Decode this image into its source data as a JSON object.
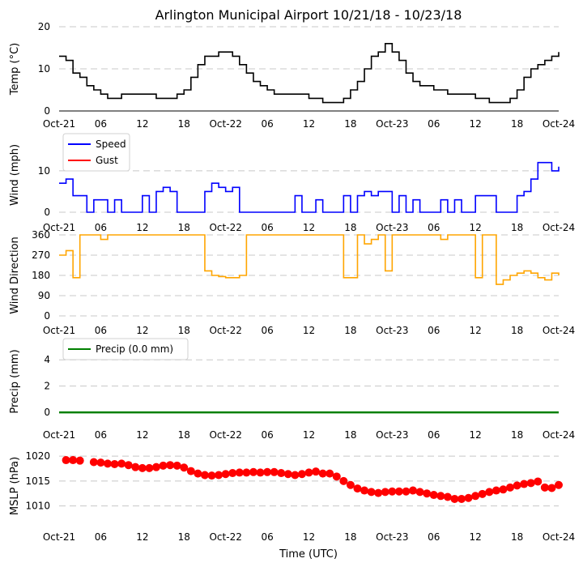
{
  "chart_data": [
    {
      "type": "line",
      "title": "Arlington Municipal Airport 10/21/18 - 10/23/18",
      "ylabel": "Temp ($^\\circ$C)",
      "ylabel_text": "Temp (°C)",
      "ylim": [
        0,
        20
      ],
      "yticks": [
        "0",
        "10",
        "20"
      ],
      "color": "#000000",
      "series": [
        {
          "name": "Temp",
          "x": [
            0,
            1,
            2,
            3,
            4,
            5,
            6,
            7,
            8,
            9,
            10,
            11,
            12,
            13,
            14,
            15,
            16,
            17,
            18,
            19,
            20,
            21,
            22,
            23,
            24,
            25,
            26,
            27,
            28,
            29,
            30,
            31,
            32,
            33,
            34,
            35,
            36,
            37,
            38,
            39,
            40,
            41,
            42,
            43,
            44,
            45,
            46,
            47,
            48,
            49,
            50,
            51,
            52,
            53,
            54,
            55,
            56,
            57,
            58,
            59,
            60,
            61,
            62,
            63,
            64,
            65,
            66,
            67,
            68,
            69,
            70,
            71,
            72
          ],
          "values": [
            13,
            12,
            9,
            8,
            6,
            5,
            4,
            3,
            3,
            4,
            4,
            4,
            4,
            4,
            3,
            3,
            3,
            4,
            5,
            8,
            11,
            13,
            13,
            14,
            14,
            13,
            11,
            9,
            7,
            6,
            5,
            4,
            4,
            4,
            4,
            4,
            3,
            3,
            2,
            2,
            2,
            3,
            5,
            7,
            10,
            13,
            14,
            16,
            14,
            12,
            9,
            7,
            6,
            6,
            5,
            5,
            4,
            4,
            4,
            4,
            3,
            3,
            2,
            2,
            2,
            3,
            5,
            8,
            10,
            11,
            12,
            13,
            14
          ]
        }
      ]
    },
    {
      "type": "line",
      "ylabel": "Wind (mph)",
      "ylim": [
        0,
        18
      ],
      "yticks": [
        "0",
        "10"
      ],
      "legend": {
        "position": "upper-left",
        "entries": [
          "Speed",
          "Gust"
        ]
      },
      "series": [
        {
          "name": "Speed",
          "color": "#0000ff",
          "x": [
            0,
            1,
            2,
            3,
            4,
            5,
            6,
            7,
            8,
            9,
            10,
            11,
            12,
            13,
            14,
            15,
            16,
            17,
            18,
            19,
            20,
            21,
            22,
            23,
            24,
            25,
            26,
            27,
            28,
            29,
            30,
            31,
            32,
            33,
            34,
            35,
            36,
            37,
            38,
            39,
            40,
            41,
            42,
            43,
            44,
            45,
            46,
            47,
            48,
            49,
            50,
            51,
            52,
            53,
            54,
            55,
            56,
            57,
            58,
            59,
            60,
            61,
            62,
            63,
            64,
            65,
            66,
            67,
            68,
            69,
            70,
            71,
            72
          ],
          "values": [
            7,
            8,
            4,
            4,
            0,
            3,
            3,
            0,
            3,
            0,
            0,
            0,
            4,
            0,
            5,
            6,
            5,
            0,
            0,
            0,
            0,
            5,
            7,
            6,
            5,
            6,
            0,
            0,
            0,
            0,
            0,
            0,
            0,
            0,
            4,
            0,
            0,
            3,
            0,
            0,
            0,
            4,
            0,
            4,
            5,
            4,
            5,
            5,
            0,
            4,
            0,
            3,
            0,
            0,
            0,
            3,
            0,
            3,
            0,
            0,
            4,
            4,
            4,
            0,
            0,
            0,
            4,
            5,
            8,
            12,
            12,
            10,
            11
          ]
        },
        {
          "name": "Gust",
          "color": "#ff0000",
          "x": [],
          "values": []
        }
      ]
    },
    {
      "type": "line",
      "ylabel": "Wind Direction",
      "ylim": [
        0,
        360
      ],
      "yticks": [
        "0",
        "90",
        "180",
        "270",
        "360"
      ],
      "color": "#ffa500",
      "series": [
        {
          "name": "Direction",
          "x": [
            0,
            1,
            2,
            3,
            4,
            5,
            6,
            7,
            8,
            9,
            10,
            11,
            12,
            13,
            14,
            15,
            16,
            17,
            18,
            19,
            20,
            21,
            22,
            23,
            24,
            25,
            26,
            27,
            28,
            29,
            30,
            31,
            32,
            33,
            34,
            35,
            36,
            37,
            38,
            39,
            40,
            41,
            42,
            43,
            44,
            45,
            46,
            47,
            48,
            49,
            50,
            51,
            52,
            53,
            54,
            55,
            56,
            57,
            58,
            59,
            60,
            61,
            62,
            63,
            64,
            65,
            66,
            67,
            68,
            69,
            70,
            71,
            72
          ],
          "values": [
            270,
            290,
            170,
            360,
            360,
            360,
            340,
            360,
            360,
            360,
            360,
            360,
            360,
            360,
            360,
            360,
            360,
            360,
            360,
            360,
            360,
            200,
            180,
            175,
            170,
            170,
            180,
            360,
            360,
            360,
            360,
            360,
            360,
            360,
            360,
            360,
            360,
            360,
            360,
            360,
            360,
            170,
            170,
            360,
            320,
            340,
            360,
            200,
            360,
            360,
            360,
            360,
            360,
            360,
            360,
            340,
            360,
            360,
            360,
            360,
            170,
            360,
            360,
            140,
            160,
            180,
            190,
            200,
            190,
            170,
            160,
            190,
            180
          ]
        }
      ]
    },
    {
      "type": "line",
      "ylabel": "Precip (mm)",
      "ylim": [
        -0.3,
        5
      ],
      "yticks": [
        "0",
        "2",
        "4"
      ],
      "color": "#008000",
      "legend": {
        "position": "upper-left",
        "entries": [
          "Precip (0.0 mm)"
        ]
      },
      "series": [
        {
          "name": "Precip (0.0 mm)",
          "x": [
            0,
            72
          ],
          "values": [
            0,
            0
          ]
        }
      ]
    },
    {
      "type": "scatter",
      "ylabel": "MSLP (hPa)",
      "ylim": [
        1007,
        1021
      ],
      "yticks": [
        "1010",
        "1015",
        "1020"
      ],
      "color": "#ff0000",
      "series": [
        {
          "name": "MSLP",
          "x": [
            1,
            2,
            3,
            5,
            6,
            7,
            8,
            9,
            10,
            11,
            12,
            13,
            14,
            15,
            16,
            17,
            18,
            19,
            20,
            21,
            22,
            23,
            24,
            25,
            26,
            27,
            28,
            29,
            30,
            31,
            32,
            33,
            34,
            35,
            36,
            37,
            38,
            39,
            40,
            41,
            42,
            43,
            44,
            45,
            46,
            47,
            48,
            49,
            50,
            51,
            52,
            53,
            54,
            55,
            56,
            57,
            58,
            59,
            60,
            61,
            62,
            63,
            64,
            65,
            66,
            67,
            68,
            69,
            70,
            71,
            72
          ],
          "values": [
            1019.2,
            1019.2,
            1019.1,
            1018.8,
            1018.7,
            1018.5,
            1018.4,
            1018.5,
            1018.2,
            1017.8,
            1017.6,
            1017.6,
            1017.8,
            1018.1,
            1018.2,
            1018.1,
            1017.7,
            1017.0,
            1016.5,
            1016.2,
            1016.1,
            1016.2,
            1016.4,
            1016.6,
            1016.7,
            1016.7,
            1016.8,
            1016.7,
            1016.8,
            1016.8,
            1016.6,
            1016.4,
            1016.2,
            1016.4,
            1016.7,
            1016.9,
            1016.5,
            1016.5,
            1015.9,
            1015.0,
            1014.2,
            1013.5,
            1013.1,
            1012.8,
            1012.6,
            1012.8,
            1012.9,
            1012.9,
            1012.9,
            1013.1,
            1012.8,
            1012.5,
            1012.2,
            1012.0,
            1011.8,
            1011.4,
            1011.4,
            1011.6,
            1012.0,
            1012.4,
            1012.8,
            1013.1,
            1013.3,
            1013.7,
            1014.1,
            1014.4,
            1014.6,
            1014.9,
            1013.7,
            1013.6,
            1014.2
          ]
        }
      ]
    }
  ],
  "xaxis": {
    "ticks": [
      "Oct-21",
      "06",
      "12",
      "18",
      "Oct-22",
      "06",
      "12",
      "18",
      "Oct-23",
      "06",
      "12",
      "18",
      "Oct-24"
    ],
    "xlabel": "Time (UTC)",
    "range_hours": [
      0,
      72
    ]
  }
}
